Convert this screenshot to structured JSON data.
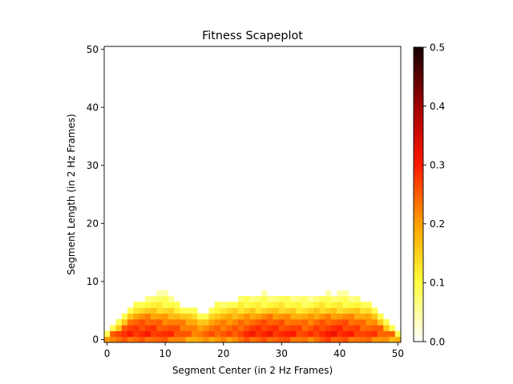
{
  "chart_data": {
    "type": "heatmap",
    "title": "Fitness Scapeplot",
    "xlabel": "Segment Center (in 2 Hz Frames)",
    "ylabel": "Segment Length (in 2 Hz Frames)",
    "xlim": [
      -0.5,
      50.5
    ],
    "ylim": [
      -0.5,
      50.5
    ],
    "xticks": [
      0,
      10,
      20,
      30,
      40,
      50
    ],
    "yticks": [
      0,
      10,
      20,
      30,
      40,
      50
    ],
    "n_centers": 51,
    "colormap": "gist_heat_r",
    "colorbar": {
      "min": 0.0,
      "max": 0.5,
      "ticks": [
        "0.0",
        "0.1",
        "0.2",
        "0.3",
        "0.4",
        "0.5"
      ]
    },
    "envelope_height": [
      1,
      2,
      3,
      4,
      5,
      6,
      6,
      7,
      7,
      7,
      7,
      7,
      6,
      5,
      5,
      5,
      4,
      4,
      5,
      6,
      6,
      6,
      6,
      7,
      7,
      7,
      7,
      7,
      7,
      7,
      7,
      7,
      7,
      7,
      7,
      7,
      7,
      7,
      7,
      7,
      7,
      7,
      7,
      7,
      6,
      6,
      5,
      4,
      3,
      2,
      1
    ],
    "tip_height": [
      0,
      0,
      0,
      0,
      0,
      0,
      0,
      0,
      0,
      1,
      1,
      0,
      0,
      0,
      0,
      0,
      0,
      0,
      0,
      0,
      0,
      0,
      0,
      0,
      0,
      0,
      0,
      1,
      0,
      0,
      0,
      0,
      0,
      0,
      0,
      0,
      0,
      0,
      1,
      0,
      1,
      1,
      0,
      0,
      0,
      0,
      0,
      0,
      0,
      0,
      0
    ],
    "profile_by_length": [
      0.21,
      0.255,
      0.235,
      0.21,
      0.17,
      0.13,
      0.09,
      0.06,
      0.04
    ],
    "center_modulation": [
      0.015,
      0.015,
      0.02,
      0.025,
      0.03,
      0.03,
      0.035,
      0.04,
      0.035,
      0.03,
      0.025,
      0.02,
      0.01,
      0.0,
      -0.01,
      -0.02,
      -0.02,
      -0.015,
      -0.01,
      -0.005,
      0.0,
      0.005,
      0.01,
      0.02,
      0.03,
      0.035,
      0.035,
      0.04,
      0.045,
      0.04,
      0.04,
      0.035,
      0.03,
      0.02,
      0.015,
      0.02,
      0.03,
      0.04,
      0.045,
      0.045,
      0.04,
      0.04,
      0.035,
      0.03,
      0.02,
      0.015,
      0.01,
      0.0,
      -0.01,
      -0.02,
      -0.02
    ]
  }
}
